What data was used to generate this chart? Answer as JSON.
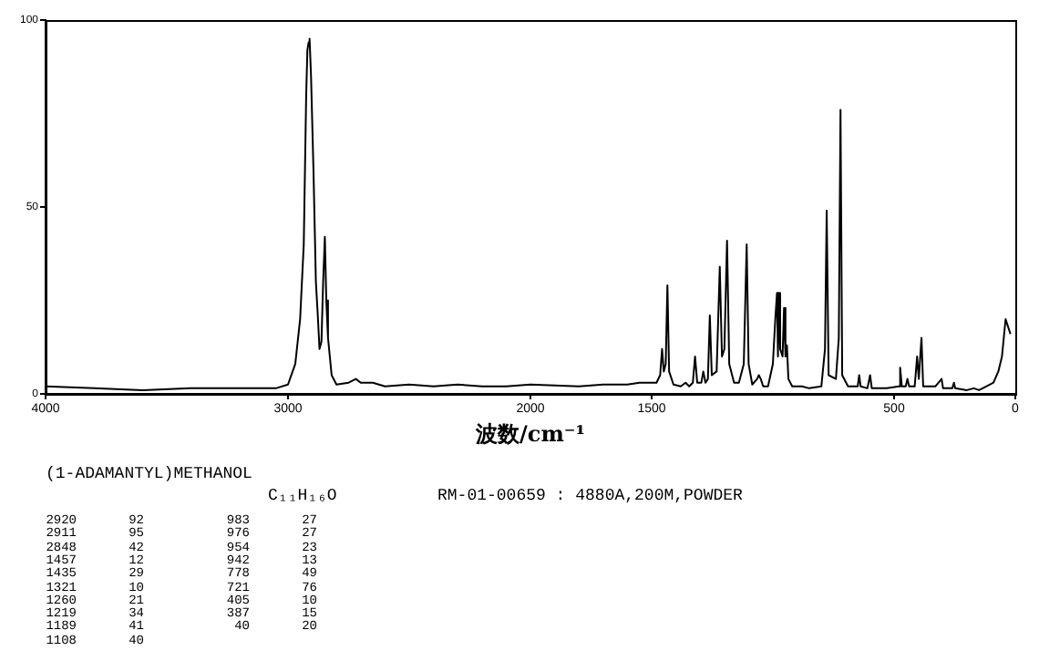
{
  "chart_data": {
    "type": "line",
    "title": "(1-ADAMANTYL)METHANOL",
    "subtitle": "C₁₁H₁₆O",
    "xlabel": "波数/cm⁻¹",
    "x": [
      4000,
      3800,
      3600,
      3400,
      3200,
      3050,
      3000,
      2970,
      2950,
      2935,
      2925,
      2920,
      2915,
      2911,
      2905,
      2895,
      2885,
      2878,
      2870,
      2862,
      2855,
      2848,
      2842,
      2835,
      2820,
      2800,
      2750,
      2720,
      2700,
      2650,
      2600,
      2500,
      2400,
      2300,
      2200,
      2100,
      2000,
      1800,
      1700,
      1600,
      1550,
      1480,
      1465,
      1457,
      1450,
      1442,
      1435,
      1428,
      1410,
      1380,
      1360,
      1345,
      1330,
      1321,
      1312,
      1295,
      1287,
      1278,
      1268,
      1260,
      1252,
      1232,
      1219,
      1210,
      1200,
      1189,
      1180,
      1160,
      1140,
      1120,
      1108,
      1100,
      1085,
      1065,
      1058,
      1050,
      1040,
      1020,
      1000,
      990,
      983,
      979,
      976,
      970,
      960,
      954,
      948,
      942,
      936,
      920,
      880,
      850,
      800,
      785,
      778,
      770,
      740,
      728,
      721,
      714,
      690,
      650,
      644,
      638,
      610,
      599,
      592,
      560,
      530,
      480,
      475,
      468,
      452,
      445,
      438,
      415,
      405,
      398,
      387,
      380,
      330,
      304,
      298,
      260,
      253,
      248,
      200,
      171,
      150,
      120,
      90,
      70,
      55,
      40,
      30,
      20
    ],
    "series": [
      {
        "color": "#000000",
        "values": [
          2,
          1.5,
          1,
          1.5,
          1.5,
          1.5,
          2.5,
          8,
          20,
          40,
          80,
          92,
          94,
          95,
          85,
          60,
          30,
          22,
          12,
          14,
          30,
          42,
          25,
          15,
          5,
          2.5,
          3,
          4,
          3,
          3,
          2,
          2.5,
          2,
          2.5,
          2,
          2,
          2.5,
          2,
          2.5,
          2.5,
          3,
          3,
          5,
          12,
          6,
          8,
          29,
          6,
          2.5,
          2,
          3,
          2,
          3,
          10,
          3,
          3,
          6,
          3,
          4,
          21,
          5,
          6,
          34,
          10,
          12,
          41,
          8,
          3,
          3,
          8,
          40,
          8,
          2.5,
          4,
          5,
          4,
          2,
          2,
          8,
          20,
          27,
          10,
          27,
          12,
          10,
          23,
          10,
          13,
          4,
          2,
          2,
          1.5,
          2,
          12,
          49,
          5,
          4,
          15,
          76,
          5,
          2,
          2,
          5,
          2,
          1.5,
          5,
          1.5,
          1.5,
          1.5,
          2,
          7,
          2,
          2,
          4,
          2,
          2,
          10,
          4,
          15,
          2,
          2,
          4,
          1.5,
          1.5,
          3,
          1.5,
          1,
          1.5,
          1,
          2,
          3,
          6,
          10,
          20,
          18,
          16
        ]
      }
    ],
    "xlim": [
      4000,
      0
    ],
    "xticks": [
      4000,
      3000,
      2000,
      1500,
      500,
      0
    ],
    "ylim": [
      0,
      100
    ],
    "yticks": [
      0,
      50,
      100
    ],
    "grid": false,
    "legend": false,
    "marker": "none",
    "line_style": "solid",
    "annotations": [
      "RM-01-00659 : 4880A,200M,POWDER",
      "2920 92",
      "2911 95",
      "2848 42",
      "1457 12",
      "1435 29",
      "1321 10",
      "1260 21",
      "1219 34",
      "1189 41",
      "1108 40",
      "983 27",
      "976 27",
      "954 23",
      "942 13",
      "778 49",
      "721 76",
      "405 10",
      "387 15",
      "40 20"
    ]
  }
}
